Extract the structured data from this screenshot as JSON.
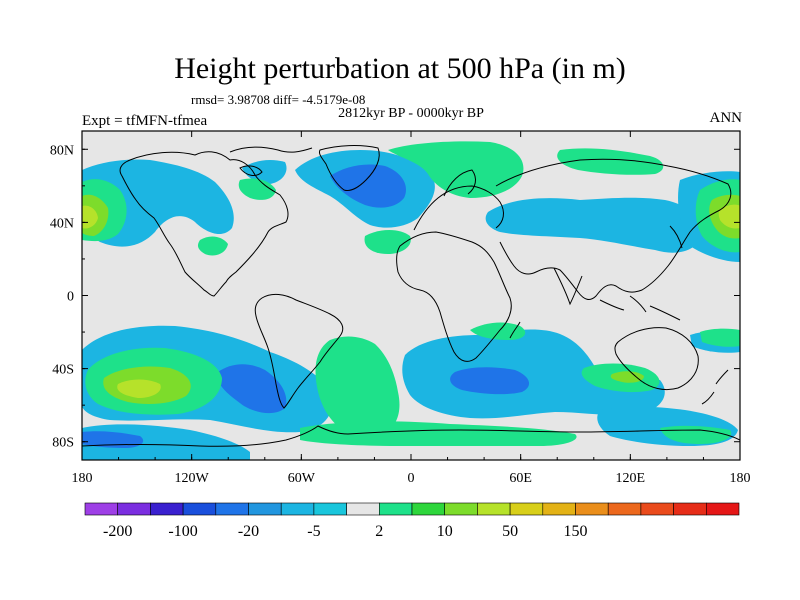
{
  "chart_data": {
    "type": "contour-map",
    "title": "Height perturbation at 500 hPa (in m)",
    "stats_line": "rmsd= 3.98708 diff= -4.5179e-08",
    "period": "2812kyr BP - 0000kyr BP",
    "experiment": "Expt = tfMFN-tfmea",
    "season": "ANN",
    "x_ticks": [
      "180",
      "120W",
      "60W",
      "0",
      "60E",
      "120E",
      "180"
    ],
    "y_ticks": [
      "80N",
      "40N",
      "0",
      "40S",
      "80S"
    ],
    "lon_range": [
      -180,
      180
    ],
    "lat_range": [
      -90,
      90
    ],
    "levels_shown": [
      "-200",
      "-100",
      "-20",
      "-5",
      "2",
      "10",
      "50",
      "150"
    ],
    "colorbar_colors": [
      "#9e3fe6",
      "#7b2ee0",
      "#3a20cf",
      "#1a4fdc",
      "#1f74e8",
      "#2196df",
      "#1cb5e2",
      "#19c6dc",
      "#e6e6e6",
      "#1ee18a",
      "#2ed63c",
      "#7ddc2b",
      "#b6e22a",
      "#d8cf1a",
      "#e3b216",
      "#ea8e1b",
      "#ec681d",
      "#ea4b1c",
      "#e62d18",
      "#e51717"
    ],
    "background_color": "#e6e6e6"
  }
}
